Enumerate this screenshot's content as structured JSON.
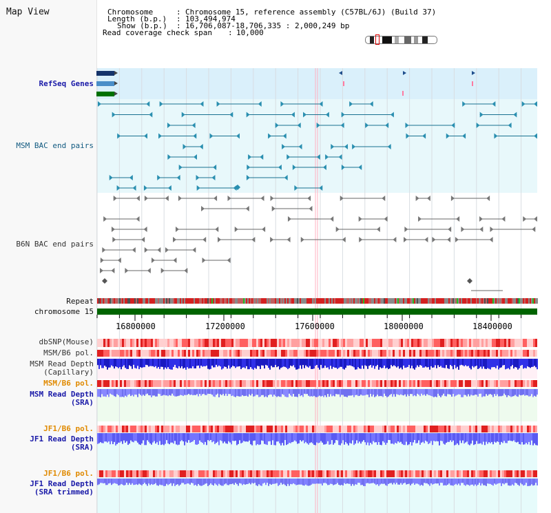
{
  "view_title": "Map View",
  "info": {
    "chromosome_label": "Chromosome",
    "chromosome_value": "Chromosome 15, reference assembly (C57BL/6J) (Build 37)",
    "length_label": "Length (b.p.)",
    "length_value": "103,494,974",
    "show_label": "Show (b.p.)",
    "show_value": "16,706,087-18,706,335 : 2,000,249 bp",
    "coverage_label": "Read coverage check span",
    "coverage_value": "10,000"
  },
  "tracks": {
    "refseq_genes": "RefSeq Genes",
    "msm_bac": "MSM BAC end pairs",
    "b6n_bac": "B6N BAC end pairs",
    "repeat": "Repeat",
    "chromosome": "chromosome 15",
    "dbsnp": "dbSNP(Mouse)",
    "msm_b6_pol_1": "MSM/B6 pol.",
    "msm_read_depth_cap_1": "MSM Read Depth",
    "msm_read_depth_cap_2": "(Capillary)",
    "msm_b6_pol_2": "MSM/B6 pol.",
    "msm_read_depth_sra_1": "MSM Read Depth",
    "msm_read_depth_sra_2": "(SRA)",
    "jf1_b6_pol_1": "JF1/B6 pol.",
    "jf1_read_depth_sra_1": "JF1 Read Depth",
    "jf1_read_depth_sra_2": "(SRA)",
    "jf1_b6_pol_2": "JF1/B6 pol.",
    "jf1_read_depth_trim_1": "JF1 Read Depth",
    "jf1_read_depth_trim_2": "(SRA trimmed)"
  },
  "axis_ticks": [
    "16800000",
    "17200000",
    "17600000",
    "18000000",
    "18400000"
  ],
  "colors": {
    "gene_blue": "#1f4e8c",
    "msm_teal": "#16708f",
    "b6n_gray": "#555555",
    "chromosome_green": "#006400",
    "depth_blue": "#1f1fe8",
    "depth_light": "#8080ff",
    "label_orange": "#e08a00",
    "label_blue": "#1a1aa8"
  }
}
